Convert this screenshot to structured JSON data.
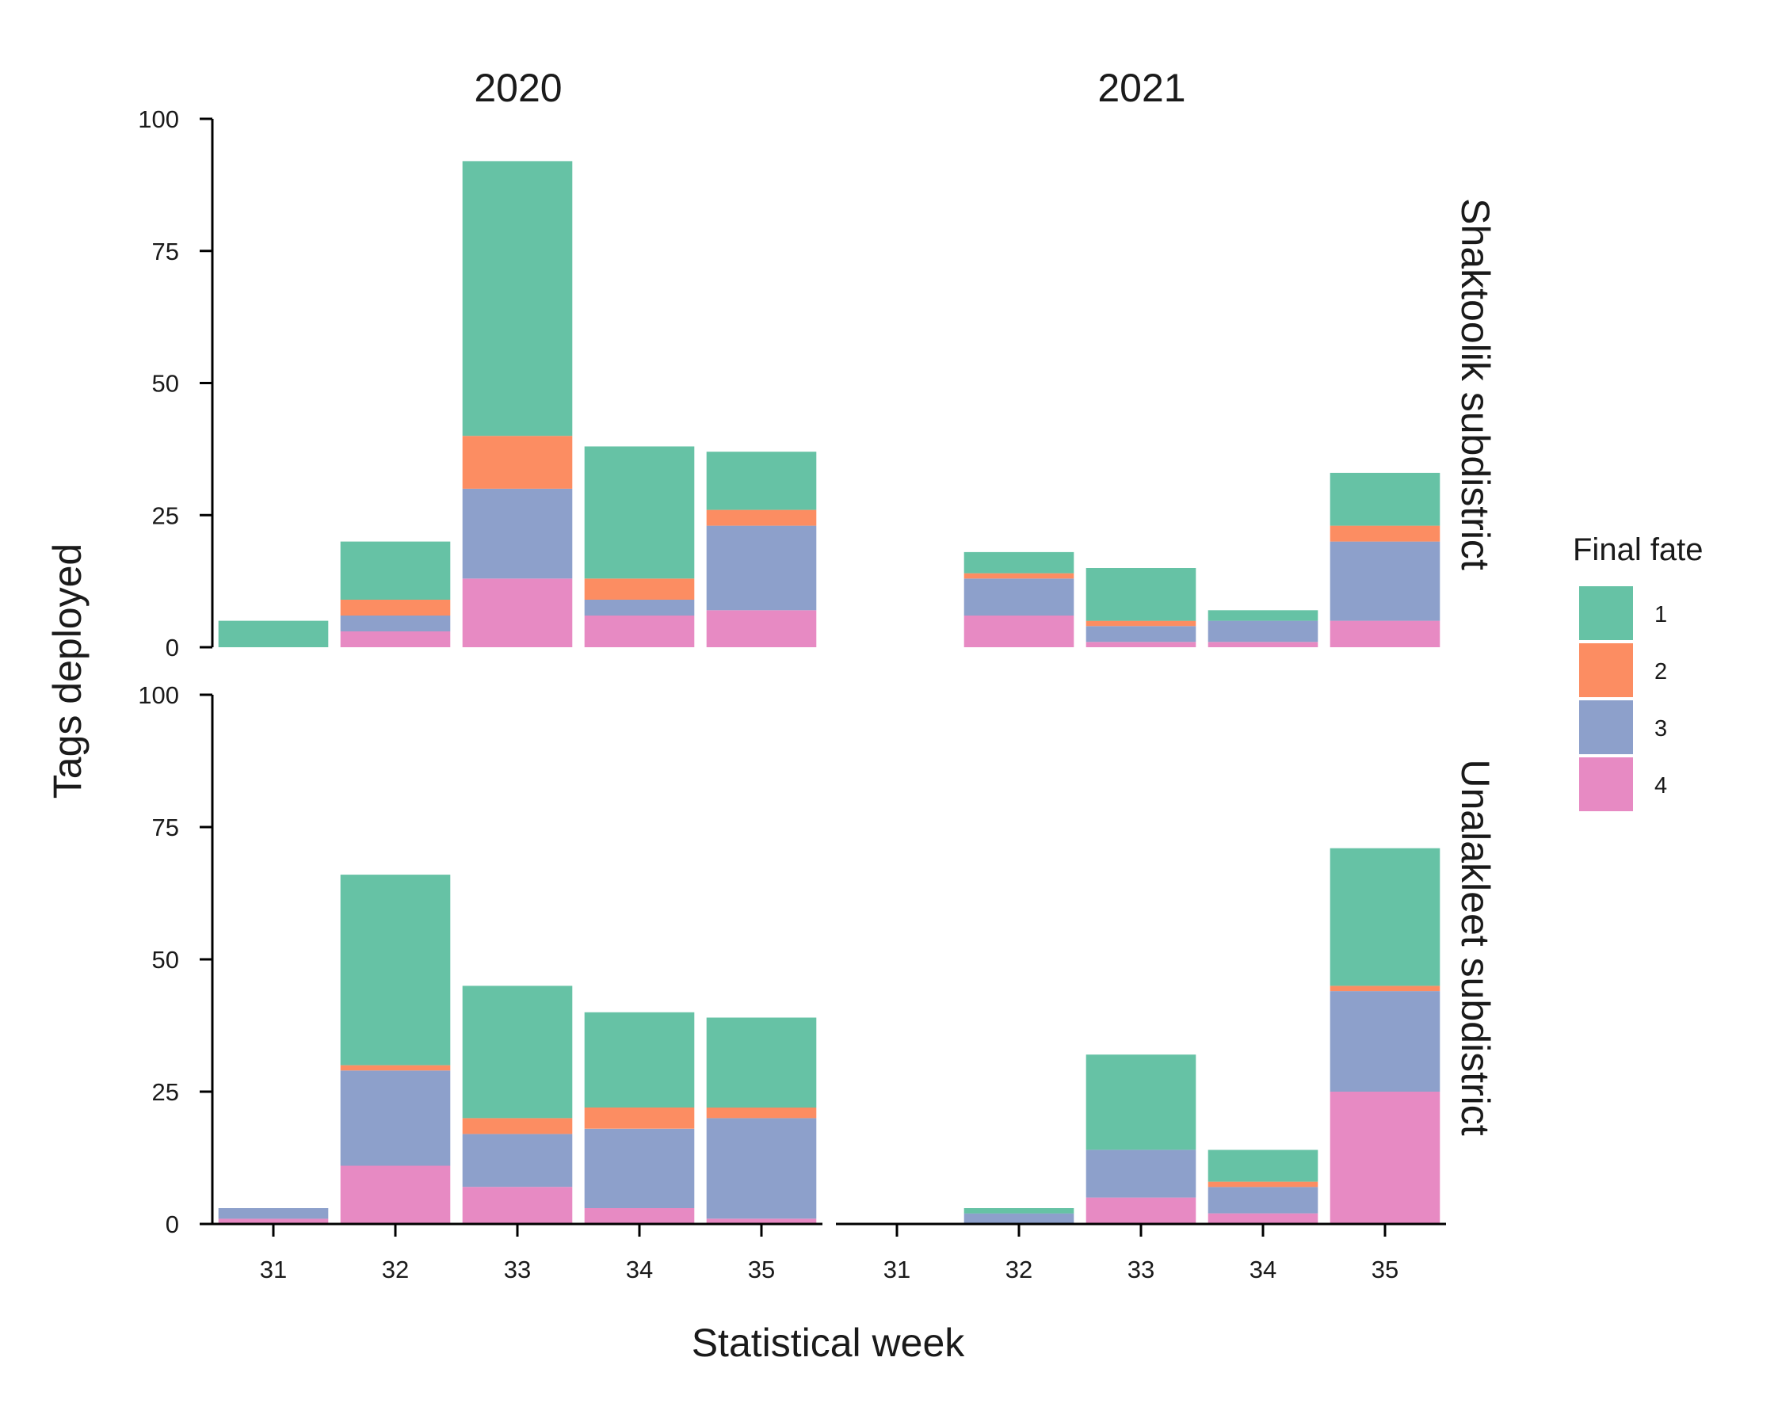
{
  "chart_data": {
    "type": "bar",
    "stacked": true,
    "xlabel": "Statistical week",
    "ylabel": "Tags deployed",
    "ylim": [
      0,
      100
    ],
    "yticks": [
      0,
      25,
      50,
      75,
      100
    ],
    "categories": [
      "31",
      "32",
      "33",
      "34",
      "35"
    ],
    "columns": [
      "2020",
      "2021"
    ],
    "rows": [
      "Shaktoolik subdistrict",
      "Unalakleet subdistrict"
    ],
    "legend": {
      "title": "Final fate",
      "position": "right",
      "items": [
        {
          "label": "1",
          "color": "#66c2a5"
        },
        {
          "label": "2",
          "color": "#fc8d62"
        },
        {
          "label": "3",
          "color": "#8da0cb"
        },
        {
          "label": "4",
          "color": "#e78ac3"
        }
      ]
    },
    "panels": [
      {
        "column": "2020",
        "row": "Shaktoolik subdistrict",
        "series": [
          {
            "name": "1",
            "values": [
              5,
              11,
              52,
              25,
              11
            ]
          },
          {
            "name": "2",
            "values": [
              0,
              3,
              10,
              4,
              3
            ]
          },
          {
            "name": "3",
            "values": [
              0,
              3,
              17,
              3,
              16
            ]
          },
          {
            "name": "4",
            "values": [
              0,
              3,
              13,
              6,
              7
            ]
          }
        ]
      },
      {
        "column": "2021",
        "row": "Shaktoolik subdistrict",
        "series": [
          {
            "name": "1",
            "values": [
              0,
              4,
              10,
              2,
              10
            ]
          },
          {
            "name": "2",
            "values": [
              0,
              1,
              1,
              0,
              3
            ]
          },
          {
            "name": "3",
            "values": [
              0,
              7,
              3,
              4,
              15
            ]
          },
          {
            "name": "4",
            "values": [
              0,
              6,
              1,
              1,
              5
            ]
          }
        ]
      },
      {
        "column": "2020",
        "row": "Unalakleet subdistrict",
        "series": [
          {
            "name": "1",
            "values": [
              0,
              36,
              25,
              18,
              17
            ]
          },
          {
            "name": "2",
            "values": [
              0,
              1,
              3,
              4,
              2
            ]
          },
          {
            "name": "3",
            "values": [
              2,
              18,
              10,
              15,
              19
            ]
          },
          {
            "name": "4",
            "values": [
              1,
              11,
              7,
              3,
              1
            ]
          }
        ]
      },
      {
        "column": "2021",
        "row": "Unalakleet subdistrict",
        "series": [
          {
            "name": "1",
            "values": [
              0,
              1,
              18,
              6,
              26
            ]
          },
          {
            "name": "2",
            "values": [
              0,
              0,
              0,
              1,
              1
            ]
          },
          {
            "name": "3",
            "values": [
              0,
              2,
              9,
              5,
              19
            ]
          },
          {
            "name": "4",
            "values": [
              0,
              0,
              5,
              2,
              25
            ]
          }
        ]
      }
    ]
  }
}
